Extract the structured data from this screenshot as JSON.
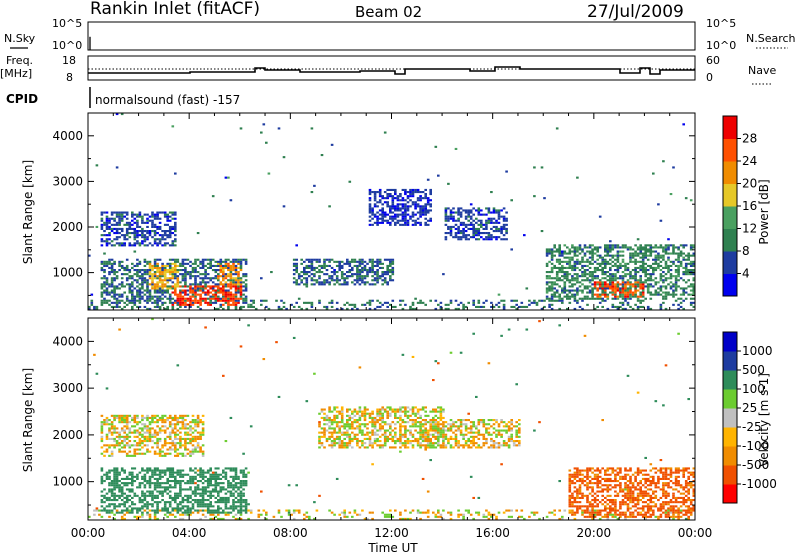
{
  "header": {
    "station": "Rankin Inlet (fitACF)",
    "beam": "Beam 02",
    "date": "27/Jul/2009"
  },
  "top_panels": {
    "nsky_label": "N.Sky",
    "nsky_ticks": [
      "10^5",
      "10^0"
    ],
    "nsearch_label": "N.Search",
    "nsearch_ticks": [
      "10^5",
      "10^0"
    ],
    "freq_label": "Freq.",
    "freq_unit": "[MHz]",
    "freq_ticks": [
      "18",
      "8"
    ],
    "nave_label": "Nave",
    "nave_ticks": [
      "60",
      "0"
    ],
    "cpid_label": "CPID",
    "cpid_text": "normalsound (fast) -157"
  },
  "colors": {
    "power_scale": [
      "#0000ee",
      "#1e3ca0",
      "#2f8050",
      "#4aa060",
      "#e6c828",
      "#f08c00",
      "#ff5000",
      "#ee0000"
    ],
    "velocity_scale": [
      "#ff0000",
      "#f05000",
      "#f08c00",
      "#ffb400",
      "#c0c0c0",
      "#6ccc30",
      "#2e8c5a",
      "#1e3ca0",
      "#0000c8"
    ]
  },
  "chart_data": [
    {
      "type": "heatmap",
      "title": "Power",
      "xlabel": "Time UT",
      "ylabel": "Slant Range [km]",
      "xlim": [
        "00:00",
        "24:00"
      ],
      "ylim": [
        180,
        4500
      ],
      "y_ticks": [
        "1000",
        "2000",
        "3000",
        "4000"
      ],
      "colorbar_label": "Power [dB]",
      "colorbar_ticks": [
        "4",
        "8",
        "12",
        "16",
        "20",
        "24",
        "28"
      ],
      "colorbar_range": [
        0,
        30
      ],
      "regions": [
        {
          "t": [
            0.5,
            6.2
          ],
          "r": [
            300,
            1300
          ],
          "level": 8
        },
        {
          "t": [
            0.5,
            3.5
          ],
          "r": [
            1550,
            2300
          ],
          "level": 6
        },
        {
          "t": [
            3.3,
            6.0
          ],
          "r": [
            250,
            700
          ],
          "level": 27
        },
        {
          "t": [
            2.4,
            3.6
          ],
          "r": [
            600,
            1200
          ],
          "level": 20
        },
        {
          "t": [
            5.0,
            6.0
          ],
          "r": [
            700,
            1200
          ],
          "level": 22
        },
        {
          "t": [
            8.0,
            12.0
          ],
          "r": [
            700,
            1300
          ],
          "level": 8
        },
        {
          "t": [
            11.0,
            13.5
          ],
          "r": [
            2000,
            2800
          ],
          "level": 5
        },
        {
          "t": [
            14.0,
            16.5
          ],
          "r": [
            1700,
            2400
          ],
          "level": 6
        },
        {
          "t": [
            18.0,
            24.0
          ],
          "r": [
            400,
            1600
          ],
          "level": 10
        },
        {
          "t": [
            20.0,
            22.0
          ],
          "r": [
            450,
            800
          ],
          "level": 26
        }
      ]
    },
    {
      "type": "heatmap",
      "title": "Velocity",
      "xlabel": "Time UT",
      "ylabel": "Slant Range [km]",
      "xlim": [
        "00:00",
        "24:00"
      ],
      "ylim": [
        180,
        4500
      ],
      "x_ticks": [
        "00:00",
        "04:00",
        "08:00",
        "12:00",
        "16:00",
        "20:00",
        "00:00"
      ],
      "y_ticks": [
        "1000",
        "2000",
        "3000",
        "4000"
      ],
      "colorbar_label": "Velocity [m s-1]",
      "colorbar_ticks": [
        "1000",
        "500",
        "100",
        "25",
        "-25",
        "-100",
        "-500",
        "-1000"
      ],
      "colorbar_range": [
        -1000,
        1000
      ],
      "regions": [
        {
          "t": [
            0.5,
            6.2
          ],
          "r": [
            300,
            1300
          ],
          "v": 200
        },
        {
          "t": [
            0.5,
            4.5
          ],
          "r": [
            1500,
            2400
          ],
          "v": 0
        },
        {
          "t": [
            9.0,
            14.0
          ],
          "r": [
            1700,
            2600
          ],
          "v": 0
        },
        {
          "t": [
            13.0,
            17.0
          ],
          "r": [
            1700,
            2300
          ],
          "v": 0
        },
        {
          "t": [
            19.0,
            24.0
          ],
          "r": [
            200,
            1300
          ],
          "v": -150
        }
      ]
    }
  ]
}
